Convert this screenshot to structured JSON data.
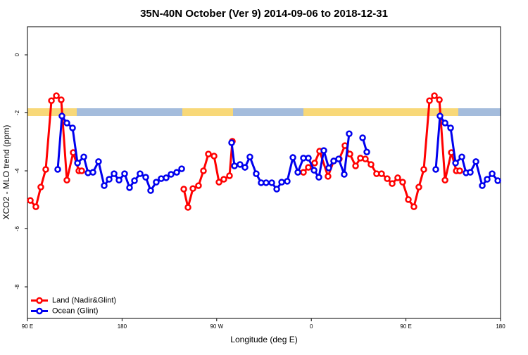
{
  "chart_data": {
    "type": "line",
    "title": "35N-40N October (Ver 9)   2014-09-06 to 2018-12-31",
    "x_label": "Longitude (deg E)",
    "y_label": "XCO2 - MLO trend (ppm)",
    "xlim": [
      90,
      540
    ],
    "xticks": [
      {
        "value": 90,
        "label": "90 E"
      },
      180,
      {
        "value": 270,
        "label": "90 W"
      },
      {
        "value": 360,
        "label": "0"
      },
      {
        "value": 450,
        "label": "90 E"
      },
      {
        "value": 540,
        "label": "180"
      }
    ],
    "ylim": [
      -9.09,
      0.97
    ],
    "yticks": [
      0,
      -2,
      -4,
      -6,
      -8
    ],
    "legend": "bottomleft",
    "series": [
      {
        "name": "Land (Nadir&Glint)",
        "color": "#ff0000",
        "x": [
          92.7,
          98.0,
          102.7,
          107.4,
          112.8,
          117.5,
          122.1,
          127.5,
          133.5,
          138.9,
          141.6,
          null,
          238.7,
          242.7,
          247.4,
          252.7,
          257.4,
          262.1,
          267.5,
          272.2,
          276.8,
          282.2,
          284.9,
          null,
          352.5,
          357.2,
          363.2,
          367.9,
          375.9,
          381.3,
          386.6,
          392.0,
          396.7,
          402.1,
          406.7,
          411.4,
          416.8,
          422.1,
          426.8,
          432.2,
          436.9,
          442.2,
          446.9,
          452.3,
          457.6,
          462.3,
          467.0,
          472.4,
          477.1,
          481.8,
          487.2,
          493.2,
          497.9,
          501.2
        ],
        "values": [
          -5.02,
          -5.24,
          -4.56,
          -3.95,
          -1.58,
          -1.41,
          -1.55,
          -4.32,
          -3.37,
          -4.0,
          -4.0,
          null,
          -4.63,
          -5.26,
          -4.61,
          -4.51,
          -4.0,
          -3.42,
          -3.49,
          -4.39,
          -4.29,
          -4.17,
          -2.98,
          null,
          -4.05,
          -3.88,
          -3.73,
          -3.32,
          -4.19,
          -3.66,
          -3.59,
          -3.13,
          -3.42,
          -3.83,
          -3.56,
          -3.59,
          -3.78,
          -4.1,
          -4.1,
          -4.27,
          -4.44,
          -4.24,
          -4.39,
          -4.99,
          -5.24,
          -4.56,
          -3.95,
          -1.58,
          -1.41,
          -1.55,
          -4.32,
          -3.37,
          -4.0,
          -4.0
        ]
      },
      {
        "name": "Ocean (Glint)",
        "color": "#0000ee",
        "x": [
          118.8,
          122.8,
          127.5,
          132.9,
          137.6,
          143.6,
          147.6,
          152.3,
          157.6,
          163.0,
          167.7,
          172.4,
          177.1,
          182.4,
          187.1,
          191.8,
          197.1,
          202.5,
          207.2,
          212.5,
          217.2,
          221.9,
          226.6,
          232.0,
          236.7,
          null,
          284.2,
          286.9,
          292.2,
          296.9,
          301.6,
          307.6,
          312.3,
          317.0,
          322.4,
          327.1,
          331.8,
          337.1,
          342.5,
          347.2,
          352.5,
          357.2,
          362.6,
          367.2,
          371.9,
          376.6,
          381.3,
          386.0,
          391.3,
          396.0,
          null,
          408.8,
          412.8,
          null,
          478.4,
          482.4,
          487.2,
          492.5,
          497.2,
          503.2,
          507.2,
          511.2,
          516.6,
          522.6,
          527.3,
          532.0,
          537.4
        ],
        "values": [
          -3.95,
          -2.11,
          -2.35,
          -2.52,
          -3.73,
          -3.52,
          -4.07,
          -4.05,
          -3.68,
          -4.51,
          -4.29,
          -4.1,
          -4.32,
          -4.1,
          -4.58,
          -4.34,
          -4.1,
          -4.22,
          -4.68,
          -4.39,
          -4.27,
          -4.24,
          -4.12,
          -4.05,
          -3.93,
          null,
          -3.03,
          -3.83,
          -3.78,
          -3.88,
          -3.52,
          -4.1,
          -4.41,
          -4.41,
          -4.41,
          -4.63,
          -4.39,
          -4.36,
          -3.54,
          -4.05,
          -3.56,
          -3.56,
          -3.98,
          -4.22,
          -3.3,
          -3.9,
          -3.66,
          -3.59,
          -4.12,
          -2.72,
          null,
          -2.86,
          -3.35,
          null,
          -3.95,
          -2.11,
          -2.35,
          -2.52,
          -3.73,
          -3.52,
          -4.07,
          -4.05,
          -3.68,
          -4.51,
          -4.29,
          -4.1,
          -4.34
        ]
      }
    ]
  }
}
